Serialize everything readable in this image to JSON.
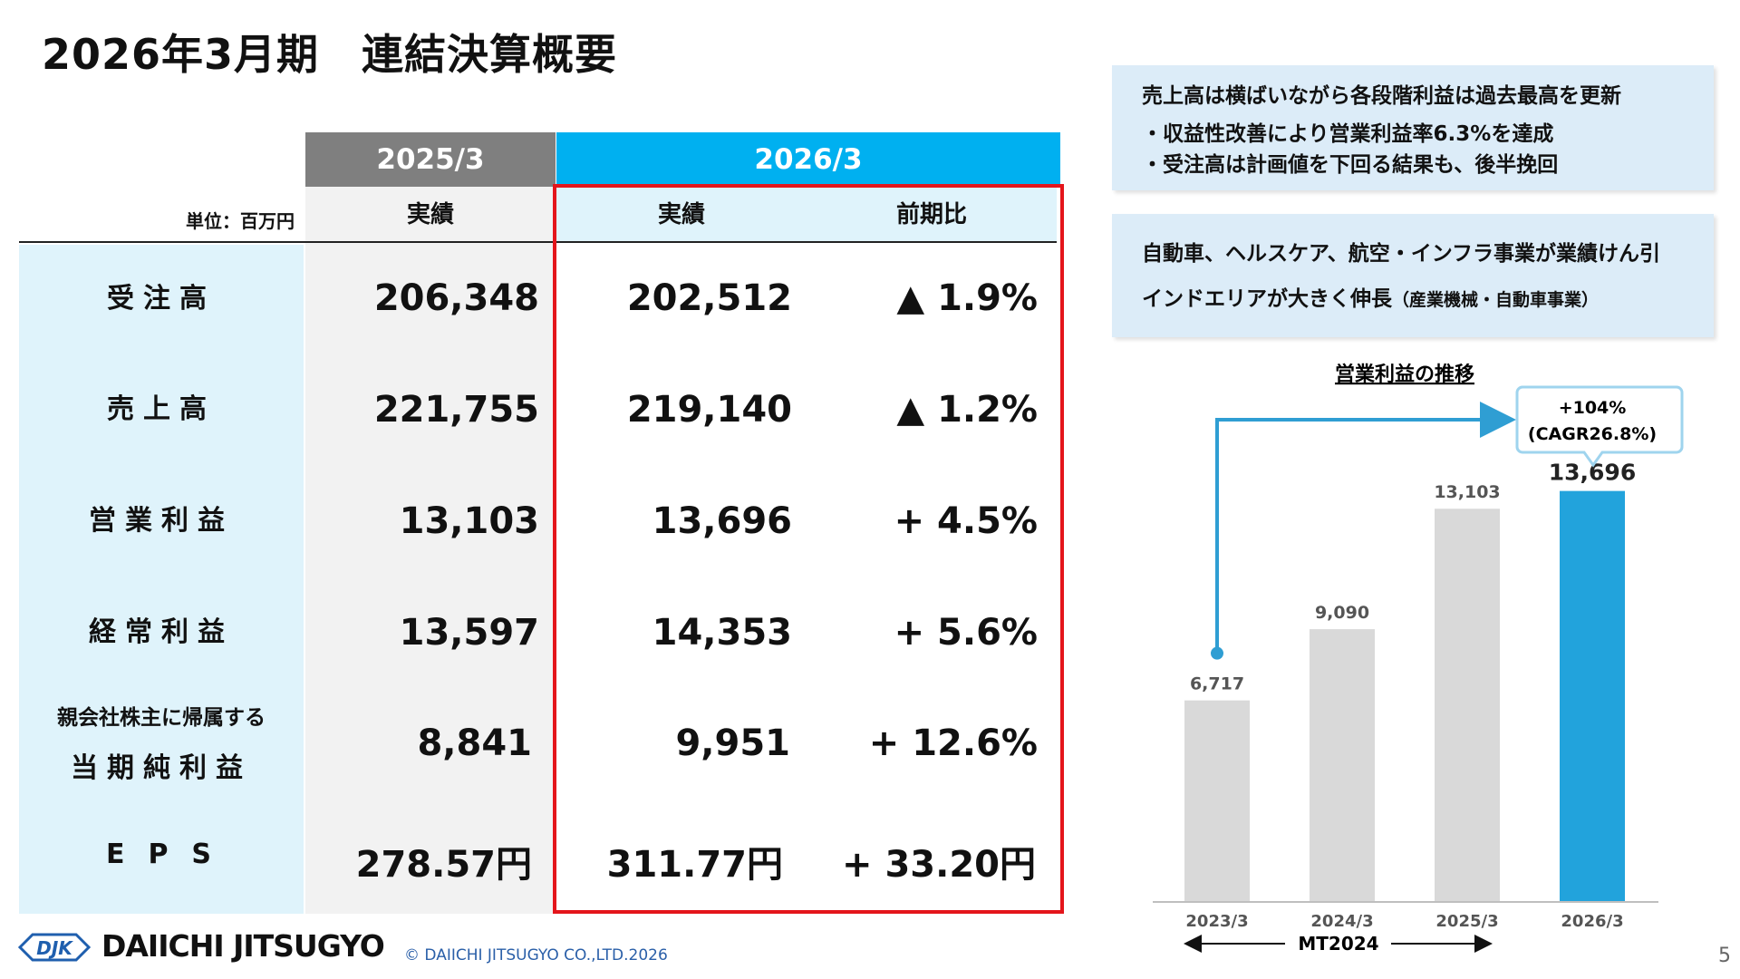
{
  "title": "2026年3月期　連結決算概要",
  "table": {
    "unit_label": "単位：百万円",
    "col_group_prev": "2025/3",
    "col_group_curr": "2026/3",
    "sub_prev": "実績",
    "sub_curr": "実績",
    "sub_change": "前期比",
    "rows": [
      {
        "label": "受注高",
        "prev": "206,348",
        "curr": "202,512",
        "change": "▲ 1.9%"
      },
      {
        "label": "売上高",
        "prev": "221,755",
        "curr": "219,140",
        "change": "▲ 1.2%"
      },
      {
        "label": "営業利益",
        "prev": "13,103",
        "curr": "13,696",
        "change": "+ 4.5%"
      },
      {
        "label": "経常利益",
        "prev": "13,597",
        "curr": "14,353",
        "change": "+ 5.6%"
      },
      {
        "label_small": "親会社株主に帰属する",
        "label": "当期純利益",
        "prev": "8,841",
        "curr": "9,951",
        "change": "+ 12.6%"
      },
      {
        "label": "EPS",
        "prev": "278.57円",
        "curr": "311.77円",
        "change": "+ 33.20円"
      }
    ]
  },
  "notes": {
    "box1": {
      "line1": "売上高は横ばいながら各段階利益は過去最高を更新",
      "line2": "・収益性改善により営業利益率6.3%を達成",
      "line3": "・受注高は計画値を下回る結果も、後半挽回"
    },
    "box2": {
      "line1": "自動車、ヘルスケア、航空・インフラ事業が業績けん引",
      "line2_main": "インドエリアが大きく伸長",
      "line2_small": "（産業機械・自動車事業）"
    }
  },
  "chart_data": {
    "type": "bar",
    "title": "営業利益の推移",
    "categories": [
      "2023/3",
      "2024/3",
      "2025/3",
      "2026/3"
    ],
    "values": [
      6717,
      9090,
      13103,
      13696
    ],
    "value_labels": [
      "6,717",
      "9,090",
      "13,103",
      "13,696"
    ],
    "ylim": [
      0,
      14500
    ],
    "highlight_index": 3,
    "callout_line1": "+104%",
    "callout_line2": "(CAGR26.8%)",
    "period_label": "MT2024",
    "colors": {
      "default": "#d9d9d9",
      "highlight": "#22a3dc",
      "arrow": "#2f9ed3"
    }
  },
  "footer": {
    "logo_mark": "DJK",
    "company": "DAIICHI JITSUGYO",
    "copyright": "© DAIICHI JITSUGYO CO.,LTD.2026",
    "page": "5"
  },
  "colors": {
    "header_prev": "#7f7f7f",
    "header_curr": "#00b0f0",
    "label_bg": "#dff3fb",
    "prev_bg": "#f2f2f2",
    "curr_sub_bg": "#dff3fb",
    "red": "#e4151b"
  }
}
